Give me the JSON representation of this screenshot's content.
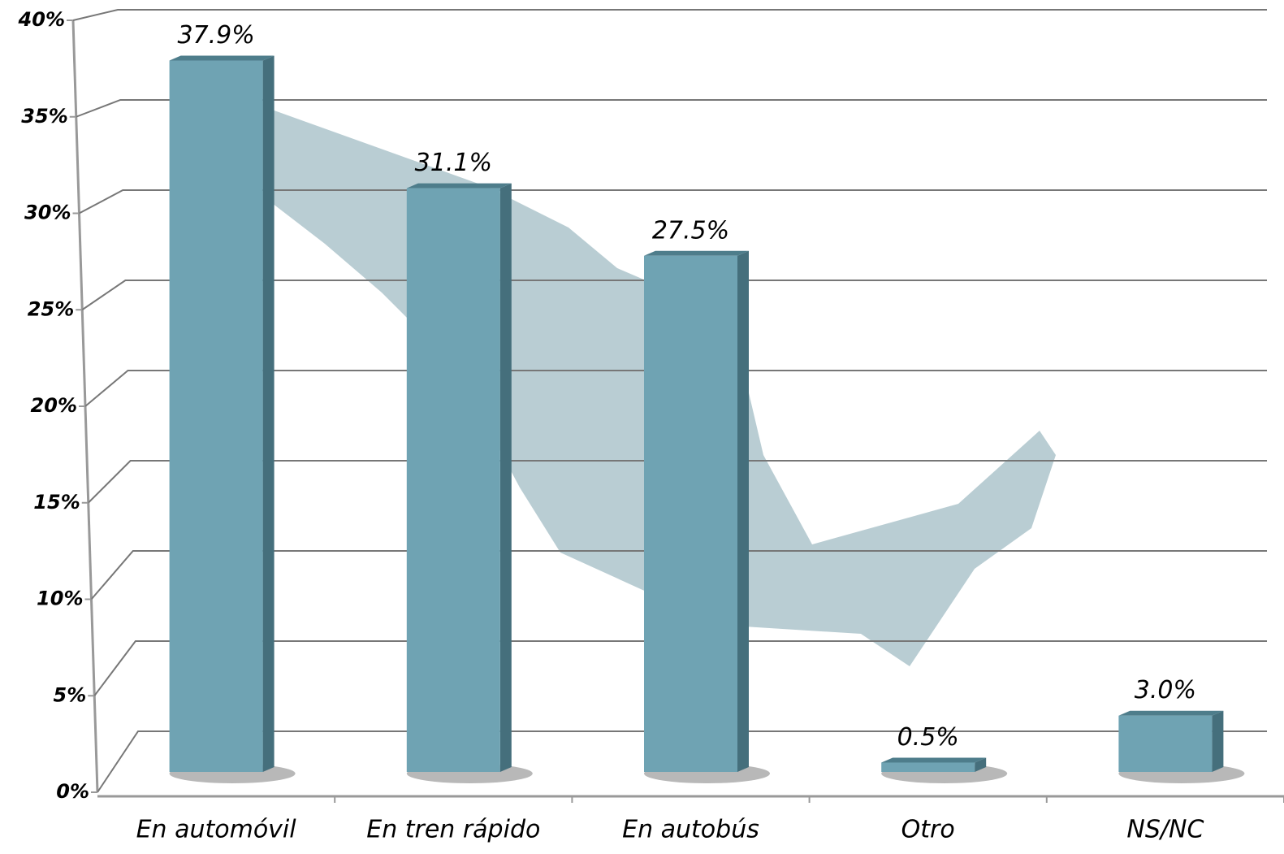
{
  "chart_data": {
    "type": "bar",
    "categories": [
      "En automóvil",
      "En tren rápido",
      "En autobús",
      "Otro",
      "NS/NC"
    ],
    "values": [
      37.9,
      31.1,
      27.5,
      0.5,
      3.0
    ],
    "value_labels": [
      "37.9%",
      "31.1%",
      "27.5%",
      "0.5%",
      "3.0%"
    ],
    "color": "#6fa3b3",
    "ylim": [
      0,
      40
    ],
    "yticks": [
      {
        "value": 0,
        "label": "0%"
      },
      {
        "value": 5,
        "label": "5%"
      },
      {
        "value": 10,
        "label": "10%"
      },
      {
        "value": 15,
        "label": "15%"
      },
      {
        "value": 20,
        "label": "20%"
      },
      {
        "value": 25,
        "label": "25%"
      },
      {
        "value": 30,
        "label": "30%"
      },
      {
        "value": 35,
        "label": "35%"
      },
      {
        "value": 40,
        "label": "40%"
      }
    ],
    "grid": true
  }
}
